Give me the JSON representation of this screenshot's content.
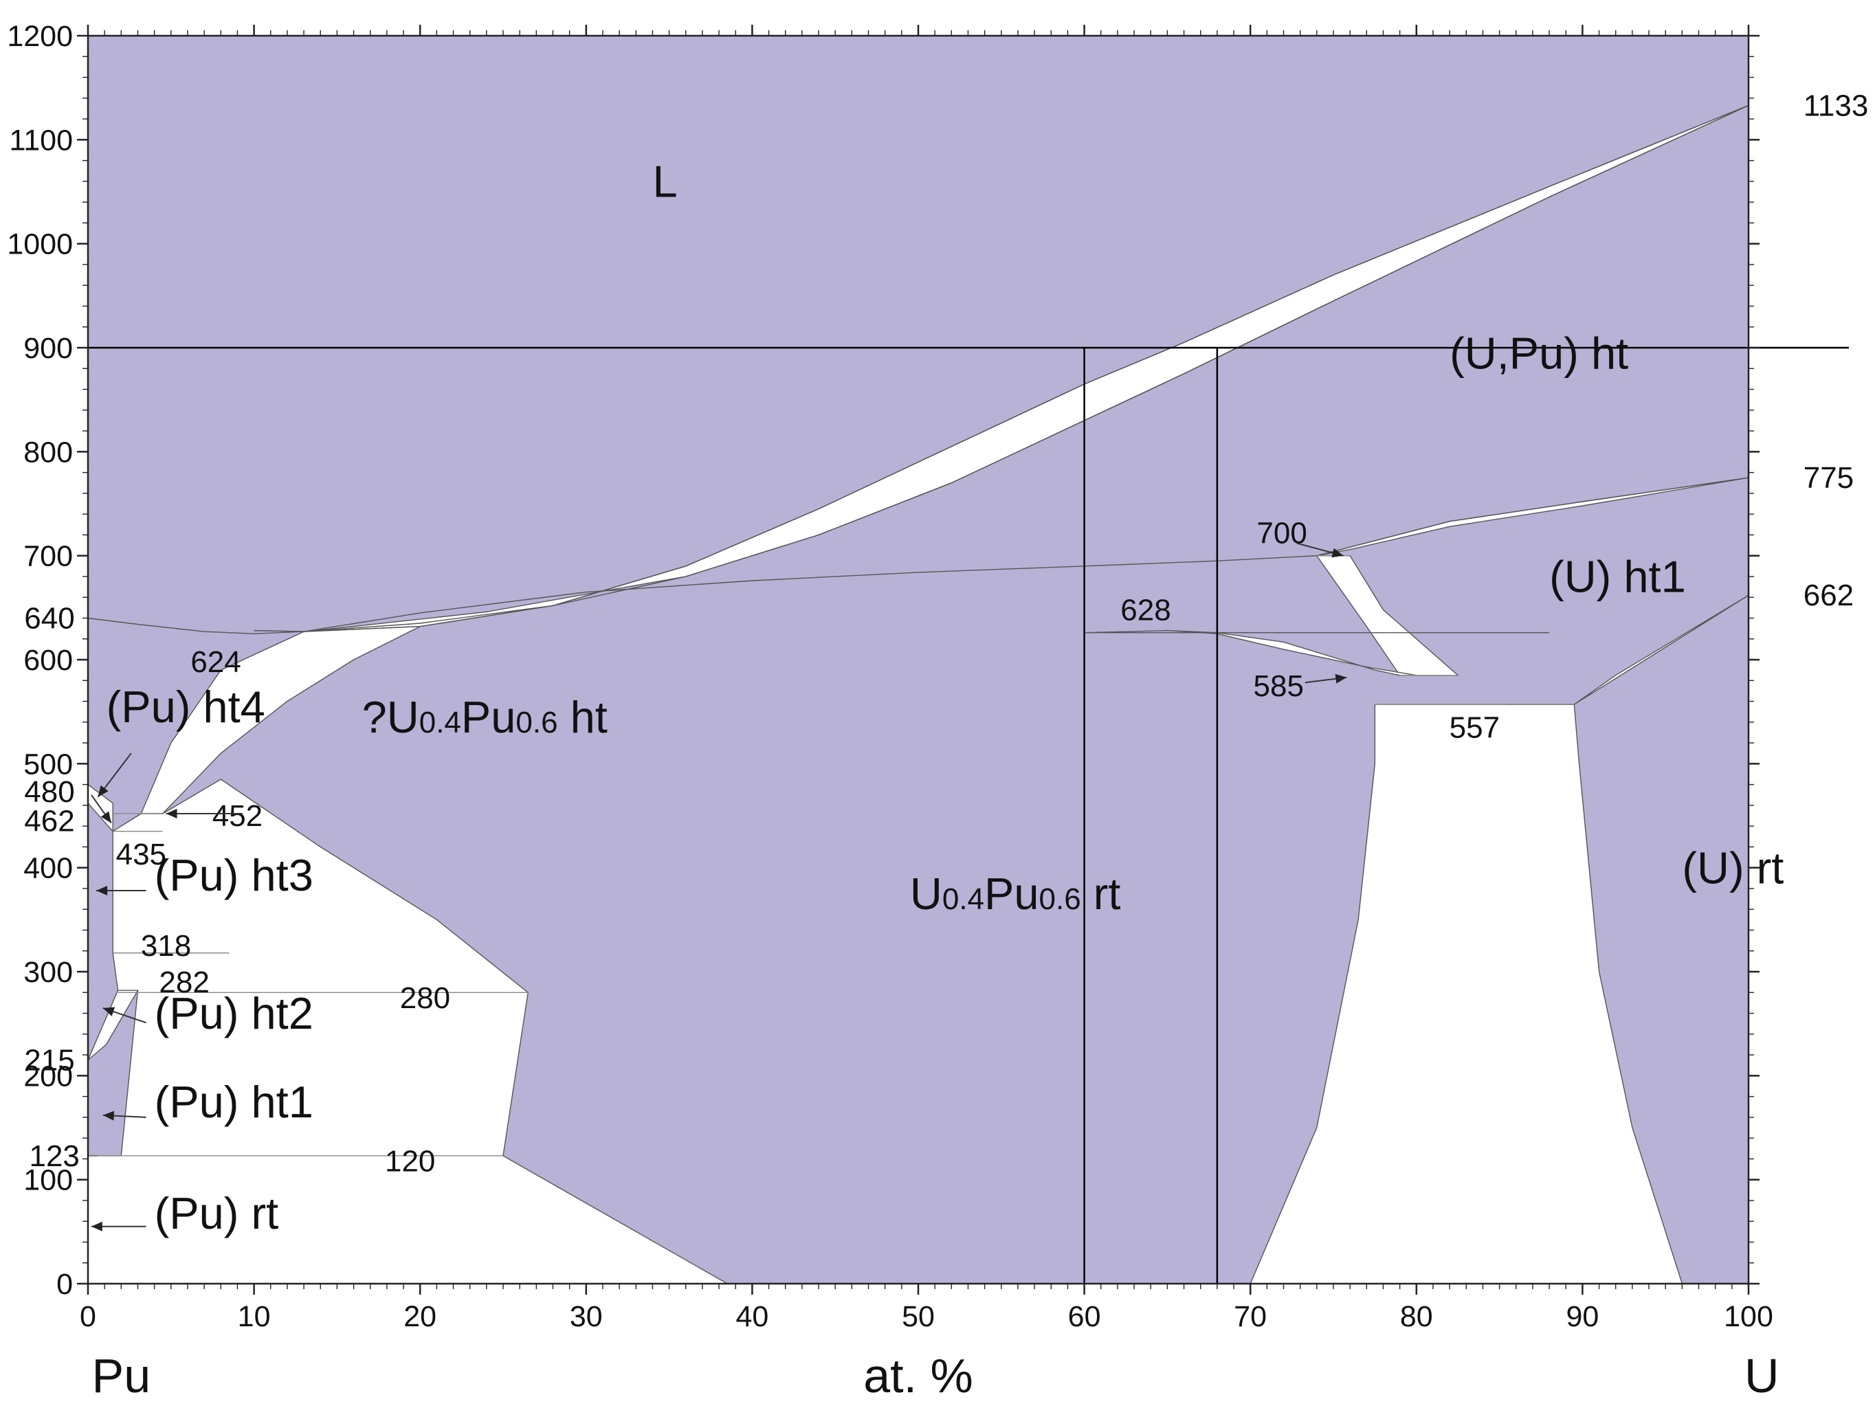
{
  "chart_data": {
    "type": "area",
    "xlabel": "at. %",
    "x_start_label": "Pu",
    "x_end_label": "U",
    "xlim": [
      0,
      100
    ],
    "ylim": [
      0,
      1200
    ],
    "x_ticks": [
      "0",
      "10",
      "20",
      "30",
      "40",
      "50",
      "60",
      "70",
      "80",
      "90",
      "100"
    ],
    "y_ticks": [
      "0",
      "100",
      "200",
      "300",
      "400",
      "500",
      "600",
      "700",
      "800",
      "900",
      "1000",
      "1100",
      "1200"
    ],
    "colors": {
      "single_phase": "#b8b2d6",
      "two_phase": "#ffffff",
      "reference_lines": "#000000"
    },
    "reference_lines": {
      "horizontal_y": 900,
      "vertical_x": [
        60,
        68
      ]
    },
    "phase_labels": [
      {
        "id": "L",
        "text": "L",
        "x": 34,
        "y": 1045
      },
      {
        "id": "upu_ht",
        "text": "(U,Pu) ht",
        "x": 82,
        "y": 880
      },
      {
        "id": "u_ht1",
        "text": "(U) ht1",
        "x": 88,
        "y": 665
      },
      {
        "id": "u_rt",
        "text": "(U) rt",
        "x": 96,
        "y": 385
      },
      {
        "id": "upu_alloy_ht",
        "q": "?",
        "main": "U",
        "sub1": "0.4",
        "mid": "Pu",
        "sub2": "0.6",
        "suffix": " ht",
        "x": 16.5,
        "y": 530
      },
      {
        "id": "upu_alloy_rt",
        "q": "",
        "main": "U",
        "sub1": "0.4",
        "mid": "Pu",
        "sub2": "0.6",
        "suffix": " rt",
        "x": 49.5,
        "y": 360
      },
      {
        "id": "pu_ht4",
        "text": "(Pu) ht4",
        "x": 1.1,
        "y": 540
      },
      {
        "id": "pu_ht3",
        "text": "(Pu) ht3",
        "x": 4,
        "y": 378
      },
      {
        "id": "pu_ht2",
        "text": "(Pu) ht2",
        "x": 4,
        "y": 245
      },
      {
        "id": "pu_ht1",
        "text": "(Pu) ht1",
        "x": 4,
        "y": 160
      },
      {
        "id": "pu_rt",
        "text": "(Pu) rt",
        "x": 4,
        "y": 53
      }
    ],
    "temperature_labels": [
      {
        "text": "1133",
        "x": 103.3,
        "y": 1133,
        "side": "right"
      },
      {
        "text": "775",
        "x": 103.3,
        "y": 775,
        "side": "right"
      },
      {
        "text": "662",
        "x": 103.3,
        "y": 662,
        "side": "right"
      },
      {
        "text": "640",
        "x": -0.8,
        "y": 640,
        "side": "left"
      },
      {
        "text": "480",
        "x": -0.8,
        "y": 473,
        "side": "left"
      },
      {
        "text": "462",
        "x": -0.8,
        "y": 445,
        "side": "left"
      },
      {
        "text": "215",
        "x": -0.8,
        "y": 215,
        "side": "left"
      },
      {
        "text": "123",
        "x": -0.5,
        "y": 123,
        "side": "left"
      },
      {
        "text": "624",
        "x": 7.7,
        "y": 598,
        "side": "center"
      },
      {
        "text": "628",
        "x": 63.7,
        "y": 648,
        "side": "center"
      },
      {
        "text": "700",
        "x": 71.9,
        "y": 722,
        "side": "center"
      },
      {
        "text": "585",
        "x": 71.7,
        "y": 575,
        "side": "center"
      },
      {
        "text": "557",
        "x": 83.5,
        "y": 535,
        "side": "center"
      },
      {
        "text": "452",
        "x": 9,
        "y": 450,
        "side": "center"
      },
      {
        "text": "435",
        "x": 3.2,
        "y": 413,
        "side": "center"
      },
      {
        "text": "318",
        "x": 4.7,
        "y": 325,
        "side": "center"
      },
      {
        "text": "282",
        "x": 5.8,
        "y": 290,
        "side": "center"
      },
      {
        "text": "280",
        "x": 20.3,
        "y": 275,
        "side": "center"
      },
      {
        "text": "120",
        "x": 19.4,
        "y": 118,
        "side": "center"
      }
    ],
    "liquidus": [
      [
        100,
        1133
      ],
      [
        88,
        1055
      ],
      [
        75,
        970
      ],
      [
        66,
        905
      ],
      [
        60,
        865
      ],
      [
        52,
        805
      ],
      [
        44,
        745
      ],
      [
        36,
        690
      ],
      [
        28,
        652
      ],
      [
        20,
        632
      ],
      [
        13,
        627
      ],
      [
        10,
        628
      ]
    ],
    "solidus": [
      [
        100,
        1133
      ],
      [
        88,
        1045
      ],
      [
        75,
        945
      ],
      [
        66,
        875
      ],
      [
        60,
        830
      ],
      [
        52,
        770
      ],
      [
        44,
        720
      ],
      [
        36,
        680
      ],
      [
        28,
        652
      ],
      [
        20,
        635
      ],
      [
        13,
        627
      ],
      [
        10,
        628
      ]
    ],
    "alloy_ht_top": [
      [
        0,
        640
      ],
      [
        3,
        634
      ],
      [
        7,
        627
      ],
      [
        10,
        625
      ],
      [
        13,
        627
      ],
      [
        20,
        645
      ],
      [
        30,
        665
      ],
      [
        40,
        676
      ],
      [
        50,
        684
      ],
      [
        60,
        690
      ],
      [
        68,
        695
      ],
      [
        74,
        700
      ]
    ],
    "ht1_ht_boundary": [
      [
        74,
        700
      ],
      [
        82,
        733
      ],
      [
        90,
        752
      ],
      [
        100,
        775
      ]
    ],
    "gaps": {
      "L_solid": [
        [
          100,
          1133
        ],
        [
          88,
          1055
        ],
        [
          75,
          970
        ],
        [
          66,
          905
        ],
        [
          60,
          865
        ],
        [
          52,
          805
        ],
        [
          44,
          745
        ],
        [
          36,
          690
        ],
        [
          28,
          652
        ],
        [
          20,
          632
        ],
        [
          13,
          627
        ],
        [
          16,
          632
        ],
        [
          24,
          646
        ],
        [
          36,
          680
        ],
        [
          44,
          720
        ],
        [
          52,
          770
        ],
        [
          60,
          830
        ],
        [
          66,
          875
        ],
        [
          75,
          945
        ],
        [
          88,
          1045
        ]
      ],
      "htbcc_ht1": [
        [
          74,
          700
        ],
        [
          82,
          733
        ],
        [
          90,
          752
        ],
        [
          100,
          775
        ],
        [
          90,
          748
        ],
        [
          82,
          728
        ],
        [
          76,
          706
        ]
      ],
      "ht1_rt_left": [
        [
          74,
          700
        ],
        [
          76,
          700
        ],
        [
          78,
          648
        ],
        [
          82.5,
          585
        ],
        [
          79,
          585
        ],
        [
          77,
          632
        ]
      ],
      "alloyht_rt_dome": [
        [
          88,
          626
        ],
        [
          60,
          626
        ],
        [
          65,
          628
        ],
        [
          68,
          626
        ],
        [
          72,
          617
        ],
        [
          77.5,
          590
        ],
        [
          79,
          585
        ],
        [
          82.5,
          585
        ],
        [
          80,
          585
        ],
        [
          77,
          593
        ],
        [
          72,
          610
        ],
        [
          68,
          625
        ],
        [
          65,
          628
        ],
        [
          60,
          626
        ]
      ],
      "rt_upu": [
        [
          77.5,
          557
        ],
        [
          89.5,
          557
        ],
        [
          89.8,
          500
        ],
        [
          91,
          300
        ],
        [
          93,
          150
        ],
        [
          96,
          0
        ],
        [
          70,
          0
        ],
        [
          74,
          150
        ],
        [
          76.5,
          350
        ],
        [
          77.5,
          500
        ]
      ],
      "ht1_rt_right": [
        [
          85.5,
          557
        ],
        [
          89.5,
          557
        ],
        [
          100,
          662
        ],
        [
          92,
          585
        ],
        [
          89.5,
          557
        ]
      ],
      "ht3_alloyht": [
        [
          13,
          627
        ],
        [
          8,
          590
        ],
        [
          5,
          520
        ],
        [
          3.2,
          452
        ],
        [
          4.5,
          452
        ],
        [
          8,
          510
        ],
        [
          12,
          560
        ],
        [
          16,
          600
        ],
        [
          20,
          632
        ]
      ],
      "pu_region": [
        [
          0,
          123
        ],
        [
          0,
          0
        ],
        [
          38.5,
          0
        ],
        [
          25,
          123
        ],
        [
          26.5,
          280
        ],
        [
          21,
          350
        ],
        [
          14,
          420
        ],
        [
          8,
          485
        ],
        [
          4.5,
          452
        ],
        [
          3.2,
          452
        ],
        [
          1.5,
          435
        ],
        [
          1.5,
          318
        ],
        [
          1.8,
          282
        ],
        [
          3,
          282
        ],
        [
          2,
          123
        ]
      ],
      "ht4_left": [
        [
          0,
          480
        ],
        [
          1.5,
          462
        ],
        [
          1.5,
          435
        ],
        [
          0,
          462
        ]
      ],
      "ht2_left": [
        [
          0,
          215
        ],
        [
          1.8,
          282
        ],
        [
          3,
          282
        ],
        [
          1.1,
          230
        ]
      ]
    }
  }
}
